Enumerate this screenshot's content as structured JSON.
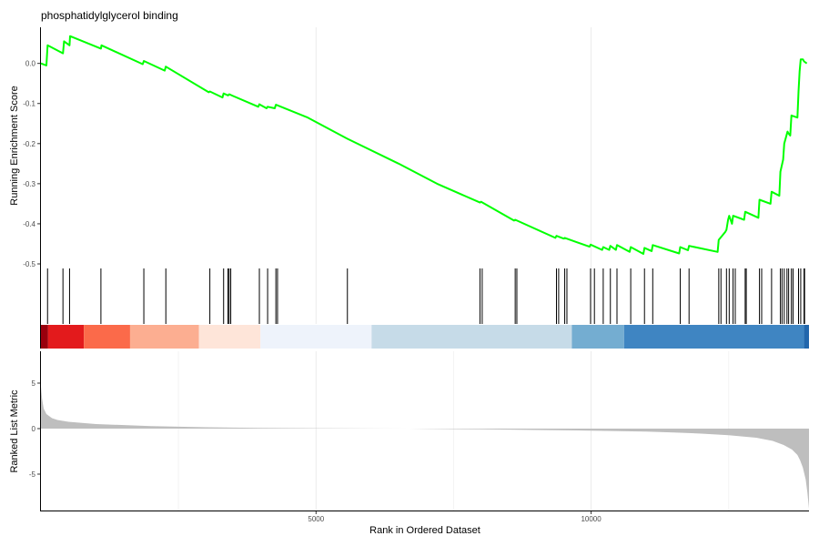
{
  "chart_data": {
    "type": "line",
    "title": "phosphatidylglycerol binding",
    "xlabel": "Rank in Ordered Dataset",
    "x_ticks": [
      5000,
      10000
    ],
    "x_range": [
      0,
      13960
    ],
    "panels": {
      "enrichment": {
        "ylabel": "Running Enrichment Score",
        "ylim": [
          -0.5,
          0.09
        ],
        "y_ticks": [
          0.0,
          -0.1,
          -0.2,
          -0.3,
          -0.4,
          -0.5
        ],
        "y_tick_labels": [
          "0.0",
          "-0.1",
          "-0.2",
          "-0.3",
          "-0.4",
          "-0.5"
        ],
        "line_color": "#00ff00",
        "series": [
          {
            "x": [
              0,
              100,
              120,
              400,
              420,
              520,
              530,
              1090,
              1100,
              1850,
              1870,
              2250,
              2270,
              3050,
              3070,
              3300,
              3320,
              3400,
              3420,
              3950,
              3970,
              4100,
              4120,
              4250,
              4270,
              4850,
              5570,
              6500,
              7200,
              7980,
              8000,
              8600,
              8620,
              9350,
              9370,
              9500,
              9520,
              9970,
              9990,
              10200,
              10220,
              10330,
              10350,
              10450,
              10470,
              10700,
              10720,
              10950,
              10970,
              11100,
              11120,
              11600,
              11620,
              11760,
              11780,
              12300,
              12320,
              12440,
              12460,
              12490,
              12510,
              12560,
              12580,
              12780,
              12800,
              13040,
              13060,
              13260,
              13280,
              13420,
              13440,
              13490,
              13510,
              13570,
              13590,
              13620,
              13640,
              13750,
              13770,
              13790,
              13810,
              13850,
              13870,
              13920
            ],
            "y": [
              0.0,
              -0.005,
              0.045,
              0.025,
              0.055,
              0.045,
              0.068,
              0.037,
              0.045,
              -0.002,
              0.006,
              -0.018,
              -0.008,
              -0.072,
              -0.07,
              -0.085,
              -0.075,
              -0.08,
              -0.077,
              -0.108,
              -0.102,
              -0.112,
              -0.108,
              -0.112,
              -0.103,
              -0.135,
              -0.188,
              -0.25,
              -0.3,
              -0.347,
              -0.345,
              -0.392,
              -0.39,
              -0.435,
              -0.43,
              -0.437,
              -0.435,
              -0.457,
              -0.452,
              -0.465,
              -0.458,
              -0.465,
              -0.455,
              -0.465,
              -0.453,
              -0.47,
              -0.458,
              -0.475,
              -0.46,
              -0.468,
              -0.453,
              -0.474,
              -0.458,
              -0.466,
              -0.455,
              -0.47,
              -0.44,
              -0.42,
              -0.415,
              -0.39,
              -0.38,
              -0.4,
              -0.38,
              -0.39,
              -0.37,
              -0.385,
              -0.34,
              -0.35,
              -0.32,
              -0.33,
              -0.27,
              -0.24,
              -0.2,
              -0.17,
              -0.175,
              -0.18,
              -0.13,
              -0.135,
              -0.07,
              -0.02,
              0.01,
              0.01,
              0.005,
              0.0
            ]
          }
        ]
      },
      "hits": {
        "positions": [
          120,
          400,
          520,
          1090,
          1870,
          2270,
          3070,
          3320,
          3400,
          3420,
          3450,
          3970,
          4120,
          4270,
          4300,
          5570,
          7980,
          8020,
          8620,
          8650,
          9370,
          9410,
          9520,
          9560,
          9990,
          10060,
          10220,
          10350,
          10470,
          10720,
          10970,
          11120,
          11620,
          11780,
          12320,
          12360,
          12460,
          12510,
          12580,
          12620,
          12800,
          12820,
          13060,
          13100,
          13280,
          13440,
          13470,
          13510,
          13560,
          13590,
          13640,
          13670,
          13770,
          13810,
          13870,
          13880
        ]
      },
      "color_bar": {
        "segments": [
          {
            "from": 0,
            "to": 130,
            "color": "#99000d"
          },
          {
            "from": 130,
            "to": 780,
            "color": "#e31a1c"
          },
          {
            "from": 780,
            "to": 1620,
            "color": "#fb6a4a"
          },
          {
            "from": 1620,
            "to": 2870,
            "color": "#fcae91"
          },
          {
            "from": 2870,
            "to": 3990,
            "color": "#fee5d9"
          },
          {
            "from": 3990,
            "to": 6010,
            "color": "#eef3fb"
          },
          {
            "from": 6010,
            "to": 9650,
            "color": "#c6dbe8"
          },
          {
            "from": 9650,
            "to": 10600,
            "color": "#74add1"
          },
          {
            "from": 10600,
            "to": 13870,
            "color": "#3f85c2"
          },
          {
            "from": 13870,
            "to": 13960,
            "color": "#2166ac"
          }
        ]
      },
      "ranked_metric": {
        "ylabel": "Ranked List Metric",
        "ylim": [
          -9.0,
          8.5
        ],
        "y_ticks": [
          5,
          0,
          -5
        ],
        "y_tick_labels": [
          "5",
          "0",
          "-5"
        ],
        "fill_color": "#bebebe",
        "x": [
          0,
          20,
          50,
          100,
          200,
          300,
          500,
          1000,
          2000,
          3000,
          4000,
          5000,
          6000,
          6700,
          7000,
          8000,
          9000,
          10000,
          11000,
          11500,
          12000,
          12500,
          13000,
          13300,
          13500,
          13650,
          13750,
          13800,
          13850,
          13900,
          13930,
          13960
        ],
        "y": [
          4.6,
          3.3,
          2.2,
          1.6,
          1.15,
          0.95,
          0.75,
          0.5,
          0.28,
          0.15,
          0.08,
          0.04,
          0.01,
          0.0,
          -0.02,
          -0.08,
          -0.15,
          -0.22,
          -0.33,
          -0.42,
          -0.55,
          -0.72,
          -1.0,
          -1.35,
          -1.8,
          -2.3,
          -2.9,
          -3.5,
          -4.3,
          -5.6,
          -7.0,
          -8.8
        ]
      }
    }
  }
}
